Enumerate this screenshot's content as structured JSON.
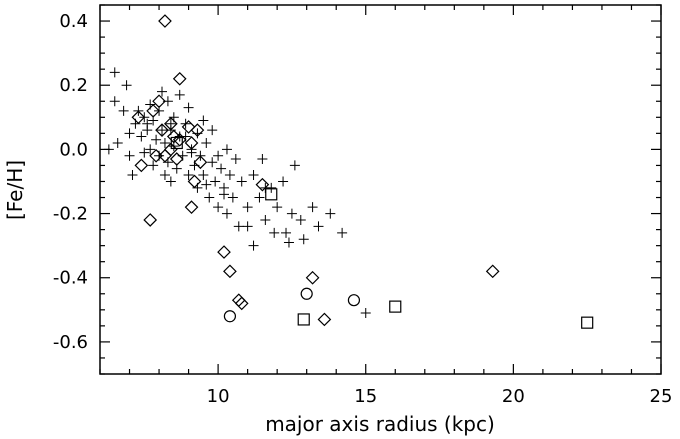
{
  "chart_data": {
    "type": "scatter",
    "xlabel": "major axis radius (kpc)",
    "ylabel": "[Fe/H]",
    "xlim": [
      6,
      25
    ],
    "ylim": [
      -0.7,
      0.45
    ],
    "x_ticks": [
      10,
      15,
      20,
      25
    ],
    "y_ticks": [
      0.4,
      0.2,
      0.0,
      -0.2,
      -0.4,
      -0.6
    ],
    "y_tick_labels": [
      "0.4",
      "0.2",
      "0.0",
      "-0.2",
      "-0.4",
      "-0.6"
    ],
    "grid": false,
    "series": [
      {
        "marker": "plus",
        "points": [
          [
            6.5,
            0.24
          ],
          [
            6.5,
            0.15
          ],
          [
            6.3,
            0.0
          ],
          [
            6.8,
            0.12
          ],
          [
            6.9,
            0.2
          ],
          [
            7.0,
            0.05
          ],
          [
            7.0,
            -0.02
          ],
          [
            6.6,
            0.02
          ],
          [
            7.2,
            0.08
          ],
          [
            7.3,
            0.12
          ],
          [
            7.4,
            0.04
          ],
          [
            7.5,
            0.1
          ],
          [
            7.5,
            -0.01
          ],
          [
            7.6,
            0.06
          ],
          [
            7.7,
            0.14
          ],
          [
            7.7,
            0.0
          ],
          [
            7.8,
            0.09
          ],
          [
            7.8,
            -0.05
          ],
          [
            7.9,
            0.03
          ],
          [
            8.0,
            0.12
          ],
          [
            8.0,
            -0.02
          ],
          [
            8.1,
            0.06
          ],
          [
            8.1,
            0.18
          ],
          [
            8.2,
            -0.08
          ],
          [
            8.2,
            0.02
          ],
          [
            8.3,
            0.15
          ],
          [
            8.3,
            -0.04
          ],
          [
            8.4,
            0.08
          ],
          [
            8.4,
            -0.1
          ],
          [
            8.5,
            0.01
          ],
          [
            8.5,
            0.1
          ],
          [
            8.6,
            -0.06
          ],
          [
            8.7,
            0.04
          ],
          [
            8.7,
            0.17
          ],
          [
            8.8,
            -0.02
          ],
          [
            8.9,
            0.08
          ],
          [
            9.0,
            -0.08
          ],
          [
            9.0,
            0.13
          ],
          [
            9.1,
            0.0
          ],
          [
            9.2,
            -0.05
          ],
          [
            9.3,
            0.05
          ],
          [
            9.3,
            -0.12
          ],
          [
            9.4,
            -0.02
          ],
          [
            9.5,
            0.09
          ],
          [
            9.5,
            -0.08
          ],
          [
            9.6,
            0.02
          ],
          [
            9.7,
            -0.15
          ],
          [
            9.8,
            -0.04
          ],
          [
            9.8,
            0.06
          ],
          [
            9.9,
            -0.1
          ],
          [
            10.0,
            -0.02
          ],
          [
            10.0,
            -0.18
          ],
          [
            10.1,
            -0.06
          ],
          [
            10.2,
            -0.12
          ],
          [
            10.3,
            0.0
          ],
          [
            10.3,
            -0.2
          ],
          [
            10.4,
            -0.08
          ],
          [
            10.5,
            -0.15
          ],
          [
            10.6,
            -0.03
          ],
          [
            10.7,
            -0.24
          ],
          [
            10.8,
            -0.1
          ],
          [
            11.0,
            -0.18
          ],
          [
            11.2,
            -0.08
          ],
          [
            11.2,
            -0.3
          ],
          [
            11.4,
            -0.15
          ],
          [
            11.5,
            -0.03
          ],
          [
            11.6,
            -0.22
          ],
          [
            11.8,
            -0.12
          ],
          [
            11.9,
            -0.26
          ],
          [
            12.0,
            -0.18
          ],
          [
            12.2,
            -0.1
          ],
          [
            12.3,
            -0.26
          ],
          [
            12.5,
            -0.2
          ],
          [
            12.6,
            -0.05
          ],
          [
            12.8,
            -0.22
          ],
          [
            12.9,
            -0.28
          ],
          [
            13.2,
            -0.18
          ],
          [
            13.4,
            -0.24
          ],
          [
            13.8,
            -0.2
          ],
          [
            14.2,
            -0.26
          ],
          [
            15.0,
            -0.51
          ],
          [
            12.4,
            -0.29
          ],
          [
            11.6,
            -0.12
          ],
          [
            9.1,
            -0.01
          ],
          [
            7.1,
            -0.08
          ],
          [
            8.9,
            0.04
          ],
          [
            7.6,
            0.08
          ],
          [
            8.4,
            0.06
          ],
          [
            9.6,
            -0.11
          ],
          [
            10.2,
            -0.14
          ],
          [
            11.0,
            -0.24
          ]
        ]
      },
      {
        "marker": "diamond",
        "points": [
          [
            8.2,
            0.4
          ],
          [
            8.7,
            0.22
          ],
          [
            8.0,
            0.15
          ],
          [
            7.3,
            0.1
          ],
          [
            8.4,
            0.08
          ],
          [
            7.8,
            0.12
          ],
          [
            8.1,
            0.06
          ],
          [
            9.0,
            0.07
          ],
          [
            9.3,
            0.06
          ],
          [
            8.5,
            0.04
          ],
          [
            8.7,
            0.03
          ],
          [
            8.4,
            0.0
          ],
          [
            9.1,
            0.02
          ],
          [
            7.9,
            -0.02
          ],
          [
            8.2,
            -0.02
          ],
          [
            8.6,
            -0.03
          ],
          [
            9.4,
            -0.04
          ],
          [
            7.4,
            -0.05
          ],
          [
            9.2,
            -0.1
          ],
          [
            9.1,
            -0.18
          ],
          [
            7.7,
            -0.22
          ],
          [
            10.2,
            -0.32
          ],
          [
            10.4,
            -0.38
          ],
          [
            10.7,
            -0.47
          ],
          [
            10.8,
            -0.48
          ],
          [
            11.5,
            -0.11
          ],
          [
            13.2,
            -0.4
          ],
          [
            13.6,
            -0.53
          ],
          [
            19.3,
            -0.38
          ]
        ]
      },
      {
        "marker": "square",
        "points": [
          [
            8.6,
            0.02
          ],
          [
            11.8,
            -0.14
          ],
          [
            12.9,
            -0.53
          ],
          [
            16.0,
            -0.49
          ],
          [
            22.5,
            -0.54
          ]
        ]
      },
      {
        "marker": "circle",
        "points": [
          [
            10.4,
            -0.52
          ],
          [
            13.0,
            -0.45
          ],
          [
            14.6,
            -0.47
          ]
        ]
      }
    ]
  }
}
